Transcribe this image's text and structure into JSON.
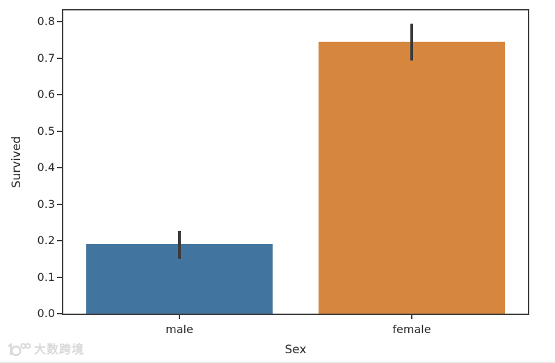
{
  "watermark": {
    "text": "大数跨境",
    "logo": "100-circles-logo",
    "color": "#d9d9d9"
  },
  "chart_data": {
    "type": "bar",
    "title": "",
    "xlabel": "Sex",
    "ylabel": "Survived",
    "categories": [
      "male",
      "female"
    ],
    "values": [
      0.19,
      0.745
    ],
    "error_bars": [
      [
        0.15,
        0.226
      ],
      [
        0.694,
        0.794
      ]
    ],
    "bar_colors": [
      "#4274a0",
      "#d7873d"
    ],
    "errorbar_color": "#3a3a3a",
    "ylim": [
      0.0,
      0.8305
    ],
    "yticks": [
      0.0,
      0.1,
      0.2,
      0.3,
      0.4,
      0.5,
      0.6,
      0.7,
      0.8
    ],
    "ytick_labels": [
      "0.0",
      "0.1",
      "0.2",
      "0.3",
      "0.4",
      "0.5",
      "0.6",
      "0.7",
      "0.8"
    ],
    "bar_width_fraction": 0.8,
    "grid": false,
    "legend": null,
    "spines": "box",
    "axis_color": "#3f3f3f",
    "text_color": "#262626"
  }
}
